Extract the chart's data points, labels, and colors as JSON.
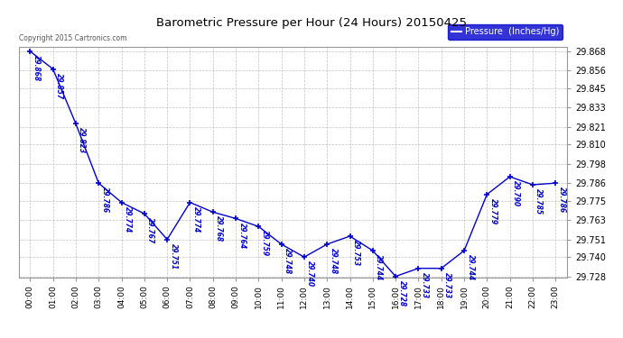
{
  "title": "Barometric Pressure per Hour (24 Hours) 20150425",
  "copyright": "Copyright 2015 Cartronics.com",
  "legend_label": "Pressure  (Inches/Hg)",
  "hours": [
    0,
    1,
    2,
    3,
    4,
    5,
    6,
    7,
    8,
    9,
    10,
    11,
    12,
    13,
    14,
    15,
    16,
    17,
    18,
    19,
    20,
    21,
    22,
    23
  ],
  "hour_labels": [
    "00:00",
    "01:00",
    "02:00",
    "03:00",
    "04:00",
    "05:00",
    "06:00",
    "07:00",
    "08:00",
    "09:00",
    "10:00",
    "11:00",
    "12:00",
    "13:00",
    "14:00",
    "15:00",
    "16:00",
    "17:00",
    "18:00",
    "19:00",
    "20:00",
    "21:00",
    "22:00",
    "23:00"
  ],
  "values": [
    29.868,
    29.857,
    29.823,
    29.786,
    29.774,
    29.767,
    29.751,
    29.774,
    29.768,
    29.764,
    29.759,
    29.748,
    29.74,
    29.748,
    29.753,
    29.744,
    29.728,
    29.733,
    29.733,
    29.744,
    29.779,
    29.79,
    29.785,
    29.786
  ],
  "ylim_min": 29.7275,
  "ylim_max": 29.8705,
  "ytick_values": [
    29.728,
    29.74,
    29.751,
    29.763,
    29.775,
    29.786,
    29.798,
    29.81,
    29.821,
    29.833,
    29.845,
    29.856,
    29.868
  ],
  "line_color": "#0000cc",
  "marker_color": "#0000cc",
  "bg_color": "#ffffff",
  "grid_color": "#b0b0b0",
  "text_color": "#0000cc",
  "title_color": "#000000",
  "legend_bg": "#0000cc",
  "legend_text": "#ffffff"
}
